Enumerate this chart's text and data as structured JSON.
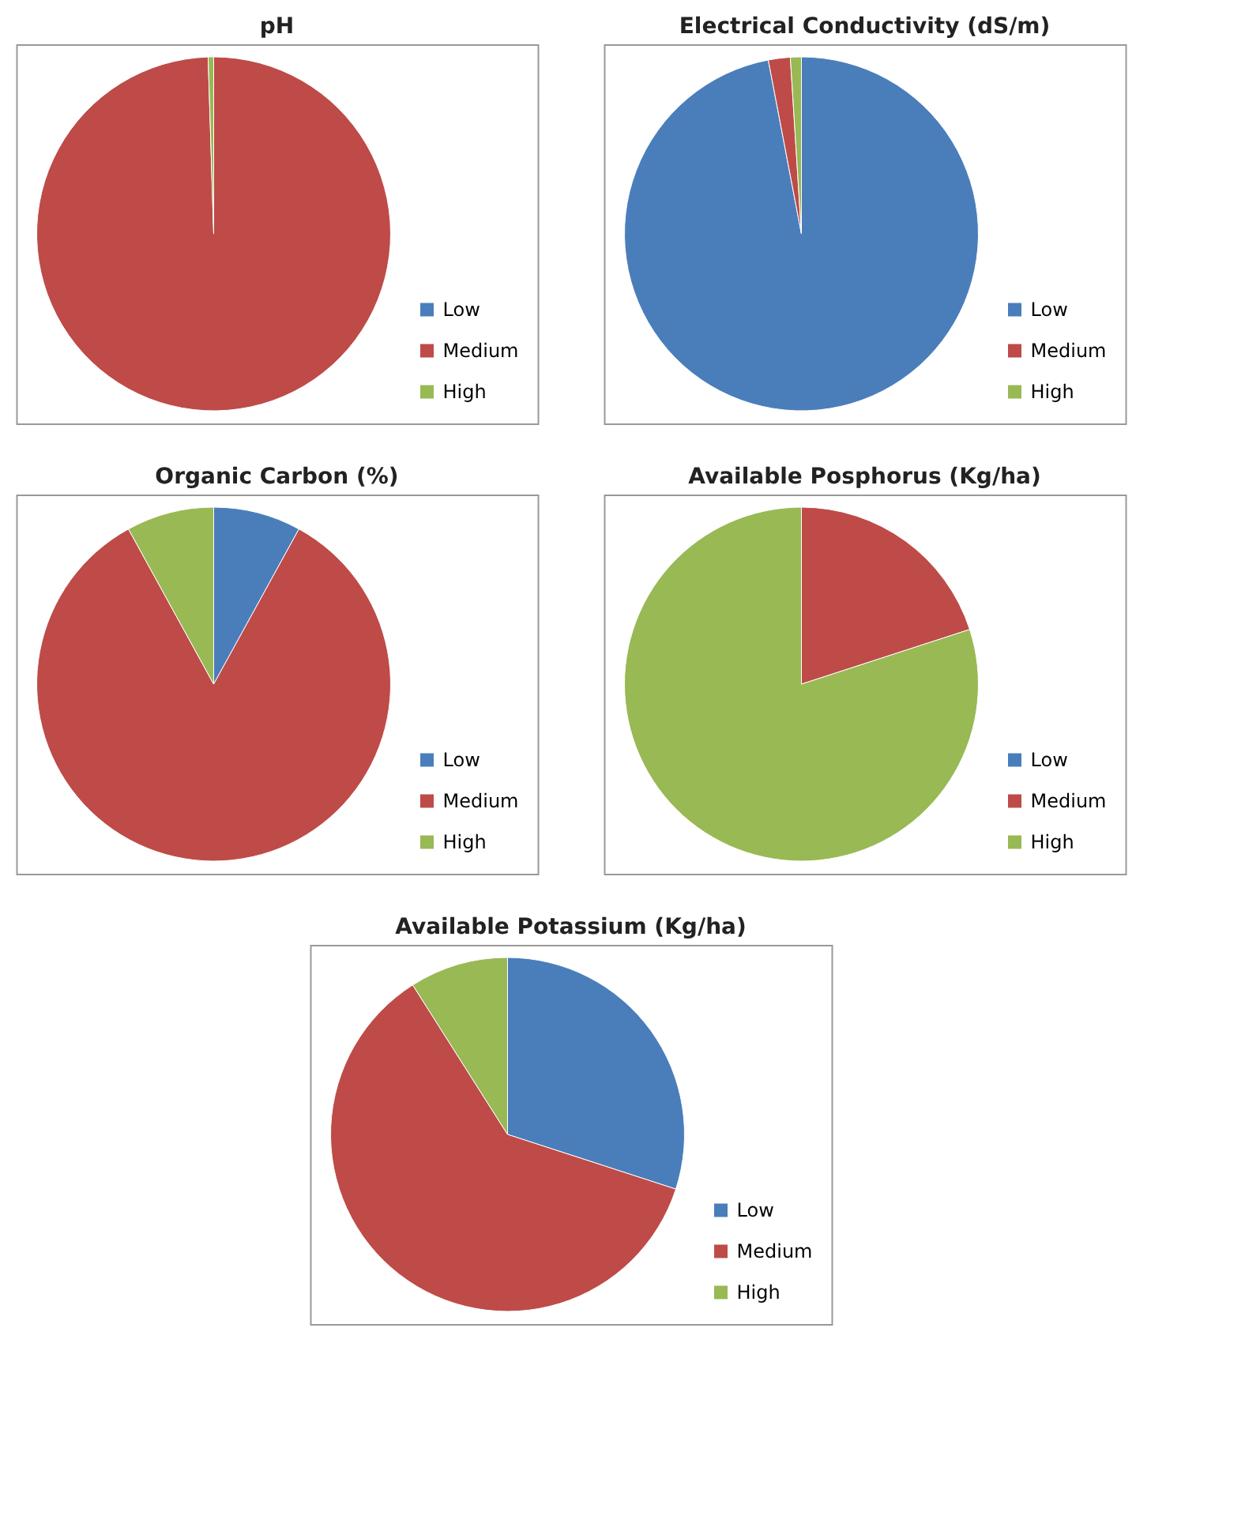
{
  "chart_data": [
    {
      "type": "pie",
      "title": "pH",
      "categories": [
        "Low",
        "Medium",
        "High"
      ],
      "values": [
        0,
        99.5,
        0.5
      ],
      "colors": [
        "#4a7ebb",
        "#be4b48",
        "#98b954"
      ],
      "legend": "bottom right"
    },
    {
      "type": "pie",
      "title": "Electrical Conductivity (dS/m)",
      "categories": [
        "Low",
        "Medium",
        "High"
      ],
      "values": [
        97,
        2,
        1
      ],
      "colors": [
        "#4a7ebb",
        "#be4b48",
        "#98b954"
      ],
      "legend": "bottom right"
    },
    {
      "type": "pie",
      "title": "Organic Carbon (%)",
      "categories": [
        "Low",
        "Medium",
        "High"
      ],
      "values": [
        8,
        84,
        8
      ],
      "colors": [
        "#4a7ebb",
        "#be4b48",
        "#98b954"
      ],
      "legend": "bottom right"
    },
    {
      "type": "pie",
      "title": "Available Posphorus (Kg/ha)",
      "categories": [
        "Low",
        "Medium",
        "High"
      ],
      "values": [
        0,
        20,
        80
      ],
      "colors": [
        "#4a7ebb",
        "#be4b48",
        "#98b954"
      ],
      "legend": "bottom right"
    },
    {
      "type": "pie",
      "title": "Available Potassium (Kg/ha)",
      "categories": [
        "Low",
        "Medium",
        "High"
      ],
      "values": [
        30,
        61,
        9
      ],
      "colors": [
        "#4a7ebb",
        "#be4b48",
        "#98b954"
      ],
      "legend": "bottom right"
    }
  ]
}
